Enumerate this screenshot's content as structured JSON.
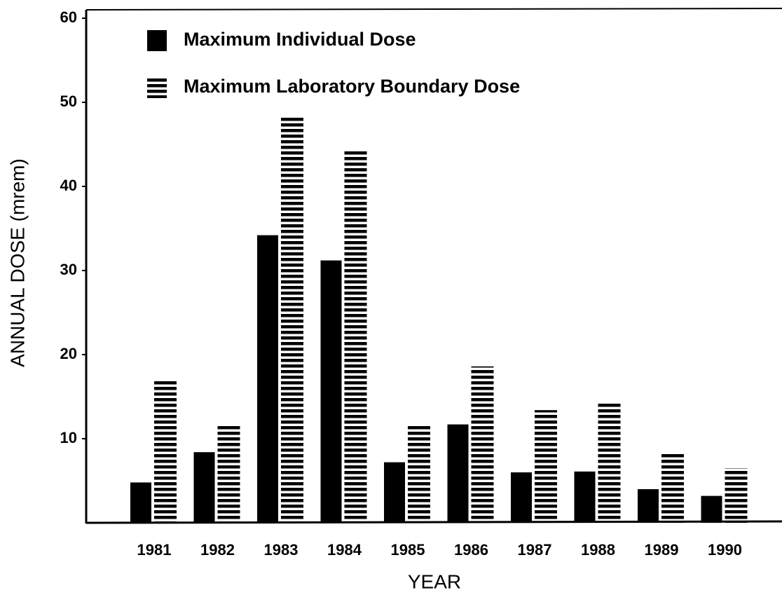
{
  "chart_data": {
    "type": "bar",
    "categories": [
      "1981",
      "1982",
      "1983",
      "1984",
      "1985",
      "1986",
      "1987",
      "1988",
      "1989",
      "1990"
    ],
    "series": [
      {
        "name": "Maximum Individual Dose",
        "color": "#000000",
        "hatch": "none",
        "values": [
          4.8,
          8.4,
          34.2,
          31.2,
          7.2,
          11.7,
          6.0,
          6.1,
          4.0,
          3.2
        ]
      },
      {
        "name": "Maximum Laboratory Boundary Dose",
        "color": "#000000",
        "hatch": "horizontal",
        "values": [
          16.9,
          11.7,
          48.2,
          44.4,
          11.6,
          18.6,
          13.4,
          14.2,
          8.2,
          6.5
        ]
      }
    ],
    "xlabel": "YEAR",
    "ylabel": "ANNUAL DOSE (mrem)",
    "ylim": [
      0,
      60
    ],
    "yticks": [
      10,
      20,
      30,
      40,
      50,
      60
    ],
    "grid": false
  }
}
